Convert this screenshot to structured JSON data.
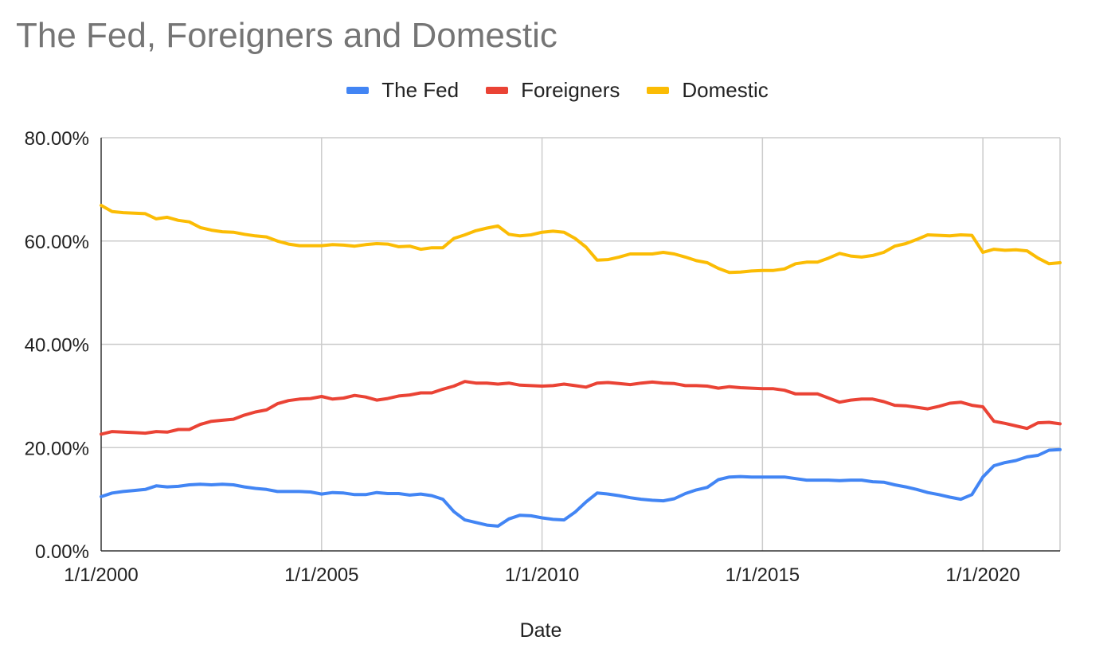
{
  "chart_data": {
    "type": "line",
    "title": "The Fed, Foreigners and Domestic",
    "xlabel": "Date",
    "ylabel": "",
    "ylim": [
      0,
      80
    ],
    "y_ticks": [
      "0.00%",
      "20.00%",
      "40.00%",
      "60.00%",
      "80.00%"
    ],
    "x_ticks": [
      "1/1/2000",
      "1/1/2005",
      "1/1/2010",
      "1/1/2015",
      "1/1/2020"
    ],
    "xlim": [
      2000,
      2021.75
    ],
    "grid": true,
    "legend_position": "top",
    "x": [
      2000.0,
      2000.25,
      2000.5,
      2000.75,
      2001.0,
      2001.25,
      2001.5,
      2001.75,
      2002.0,
      2002.25,
      2002.5,
      2002.75,
      2003.0,
      2003.25,
      2003.5,
      2003.75,
      2004.0,
      2004.25,
      2004.5,
      2004.75,
      2005.0,
      2005.25,
      2005.5,
      2005.75,
      2006.0,
      2006.25,
      2006.5,
      2006.75,
      2007.0,
      2007.25,
      2007.5,
      2007.75,
      2008.0,
      2008.25,
      2008.5,
      2008.75,
      2009.0,
      2009.25,
      2009.5,
      2009.75,
      2010.0,
      2010.25,
      2010.5,
      2010.75,
      2011.0,
      2011.25,
      2011.5,
      2011.75,
      2012.0,
      2012.25,
      2012.5,
      2012.75,
      2013.0,
      2013.25,
      2013.5,
      2013.75,
      2014.0,
      2014.25,
      2014.5,
      2014.75,
      2015.0,
      2015.25,
      2015.5,
      2015.75,
      2016.0,
      2016.25,
      2016.5,
      2016.75,
      2017.0,
      2017.25,
      2017.5,
      2017.75,
      2018.0,
      2018.25,
      2018.5,
      2018.75,
      2019.0,
      2019.25,
      2019.5,
      2019.75,
      2020.0,
      2020.25,
      2020.5,
      2020.75,
      2021.0,
      2021.25,
      2021.5,
      2021.75
    ],
    "series": [
      {
        "name": "The Fed",
        "color": "#4285F4",
        "values": [
          10.5,
          11.2,
          11.5,
          11.7,
          11.9,
          12.6,
          12.4,
          12.5,
          12.8,
          12.9,
          12.8,
          12.9,
          12.8,
          12.4,
          12.1,
          11.9,
          11.5,
          11.5,
          11.5,
          11.4,
          11.0,
          11.3,
          11.2,
          10.9,
          10.9,
          11.3,
          11.1,
          11.1,
          10.8,
          11.0,
          10.7,
          10.0,
          7.6,
          6.0,
          5.5,
          5.0,
          4.8,
          6.2,
          6.9,
          6.8,
          6.4,
          6.1,
          6.0,
          7.5,
          9.5,
          11.2,
          11.0,
          10.7,
          10.3,
          10.0,
          9.8,
          9.7,
          10.1,
          11.1,
          11.8,
          12.3,
          13.8,
          14.3,
          14.4,
          14.3,
          14.3,
          14.3,
          14.3,
          14.0,
          13.7,
          13.7,
          13.7,
          13.6,
          13.7,
          13.7,
          13.4,
          13.3,
          12.8,
          12.4,
          11.9,
          11.3,
          10.9,
          10.4,
          10.0,
          10.9,
          14.3,
          16.5,
          17.1,
          17.5,
          18.2,
          18.5,
          19.5,
          19.6
        ]
      },
      {
        "name": "Foreigners",
        "color": "#EA4335",
        "values": [
          22.6,
          23.1,
          23.0,
          22.9,
          22.8,
          23.1,
          23.0,
          23.5,
          23.5,
          24.5,
          25.1,
          25.3,
          25.5,
          26.3,
          26.9,
          27.3,
          28.5,
          29.1,
          29.4,
          29.5,
          29.9,
          29.4,
          29.6,
          30.1,
          29.8,
          29.2,
          29.5,
          30.0,
          30.2,
          30.6,
          30.6,
          31.3,
          31.9,
          32.8,
          32.5,
          32.5,
          32.3,
          32.5,
          32.1,
          32.0,
          31.9,
          32.0,
          32.3,
          32.0,
          31.7,
          32.5,
          32.6,
          32.4,
          32.2,
          32.5,
          32.7,
          32.5,
          32.4,
          32.0,
          32.0,
          31.9,
          31.5,
          31.8,
          31.6,
          31.5,
          31.4,
          31.4,
          31.1,
          30.4,
          30.4,
          30.4,
          29.6,
          28.8,
          29.2,
          29.4,
          29.4,
          28.9,
          28.2,
          28.1,
          27.8,
          27.5,
          28.0,
          28.6,
          28.8,
          28.2,
          27.9,
          25.1,
          24.7,
          24.2,
          23.7,
          24.8,
          24.9,
          24.6
        ]
      },
      {
        "name": "Domestic",
        "color": "#FBBC04",
        "values": [
          66.9,
          65.7,
          65.5,
          65.4,
          65.3,
          64.3,
          64.6,
          64.0,
          63.7,
          62.6,
          62.1,
          61.8,
          61.7,
          61.3,
          61.0,
          60.8,
          60.0,
          59.4,
          59.1,
          59.1,
          59.1,
          59.3,
          59.2,
          59.0,
          59.3,
          59.5,
          59.4,
          58.9,
          59.0,
          58.4,
          58.7,
          58.7,
          60.5,
          61.2,
          62.0,
          62.5,
          62.9,
          61.3,
          61.0,
          61.2,
          61.7,
          61.9,
          61.7,
          60.5,
          58.8,
          56.3,
          56.4,
          56.9,
          57.5,
          57.5,
          57.5,
          57.8,
          57.5,
          56.9,
          56.2,
          55.8,
          54.7,
          53.9,
          54.0,
          54.2,
          54.3,
          54.3,
          54.6,
          55.6,
          55.9,
          55.9,
          56.7,
          57.6,
          57.1,
          56.9,
          57.2,
          57.8,
          59.0,
          59.5,
          60.3,
          61.2,
          61.1,
          61.0,
          61.2,
          61.1,
          57.8,
          58.4,
          58.2,
          58.3,
          58.1,
          56.7,
          55.6,
          55.8
        ]
      }
    ]
  }
}
